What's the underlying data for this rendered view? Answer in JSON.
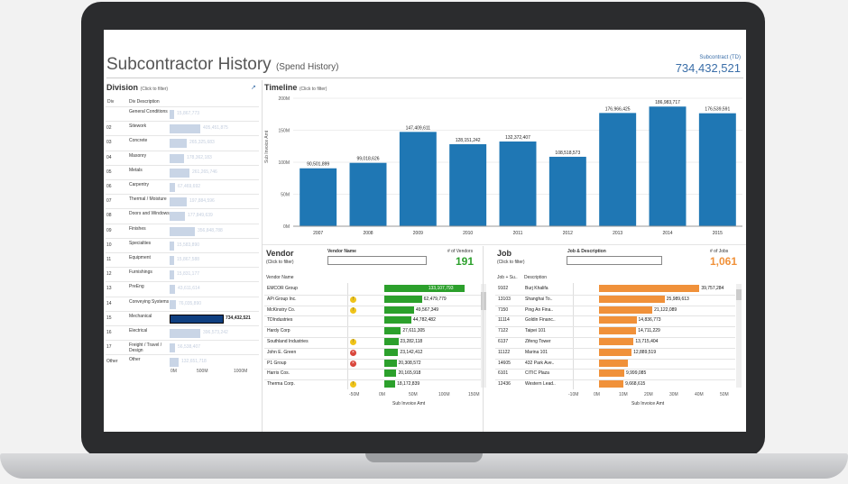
{
  "page": {
    "title": "Subcontractor History",
    "subtitle": "(Spend History)",
    "kpi_label": "Subcontract (TD)",
    "kpi_value": "734,432,521"
  },
  "division": {
    "title": "Division",
    "hint": "(Click to filter)",
    "col_div": "Div",
    "col_desc": "Div Description",
    "rows": [
      {
        "code": "",
        "desc": "General Conditions",
        "val": "15,867,773",
        "frac": 0.05
      },
      {
        "code": "02",
        "desc": "Sitework",
        "val": "405,451,875",
        "frac": 0.34
      },
      {
        "code": "03",
        "desc": "Concrete",
        "val": "265,325,683",
        "frac": 0.19
      },
      {
        "code": "04",
        "desc": "Masonry",
        "val": "178,362,183",
        "frac": 0.16
      },
      {
        "code": "05",
        "desc": "Metals",
        "val": "261,265,746",
        "frac": 0.22
      },
      {
        "code": "06",
        "desc": "Carpentry",
        "val": "67,469,692",
        "frac": 0.06
      },
      {
        "code": "07",
        "desc": "Thermal / Moisture",
        "val": "197,884,596",
        "frac": 0.19
      },
      {
        "code": "08",
        "desc": "Doors and Windows",
        "val": "177,849,639",
        "frac": 0.17
      },
      {
        "code": "09",
        "desc": "Finishes",
        "val": "356,848,788",
        "frac": 0.28
      },
      {
        "code": "10",
        "desc": "Specialties",
        "val": "15,583,890",
        "frac": 0.05
      },
      {
        "code": "11",
        "desc": "Equipment",
        "val": "15,867,588",
        "frac": 0.05
      },
      {
        "code": "12",
        "desc": "Furnishings",
        "val": "15,831,177",
        "frac": 0.05
      },
      {
        "code": "13",
        "desc": "PreEng",
        "val": "43,611,614",
        "frac": 0.06
      },
      {
        "code": "14",
        "desc": "Conveying Systems",
        "val": "76,035,890",
        "frac": 0.07
      },
      {
        "code": "15",
        "desc": "Mechanical",
        "val": "734,432,521",
        "frac": 0.6,
        "selected": true
      },
      {
        "code": "16",
        "desc": "Electrical",
        "val": "396,573,242",
        "frac": 0.34
      },
      {
        "code": "17",
        "desc": "Freight / Travel / Design",
        "val": "56,538,407",
        "frac": 0.06
      },
      {
        "code": "Other",
        "desc": "Other",
        "val": "132,651,718",
        "frac": 0.1
      }
    ],
    "axis": [
      "0M",
      "500M",
      "1000M"
    ]
  },
  "timeline": {
    "title": "Timeline",
    "hint": "(Click to filter)",
    "ylabel": "Sub Invoice Amt",
    "yticks": [
      "200M",
      "150M",
      "100M",
      "50M",
      "0M"
    ]
  },
  "chart_data": [
    {
      "type": "bar",
      "title": "Timeline",
      "ylabel": "Sub Invoice Amt",
      "ylim": [
        0,
        200000000
      ],
      "categories": [
        "2007",
        "2008",
        "2009",
        "2010",
        "2011",
        "2012",
        "2013",
        "2014",
        "2015"
      ],
      "values": [
        90501899,
        99018626,
        147409611,
        128151242,
        132372407,
        108518573,
        176966425,
        186983717,
        176539591
      ],
      "labels": [
        "90,501,899",
        "99,018,626",
        "147,409,611",
        "128,151,242",
        "132,372,407",
        "108,518,573",
        "176,966,425",
        "186,983,717",
        "176,539,591"
      ]
    },
    {
      "type": "bar",
      "title": "Vendor",
      "xlabel": "Sub Invoice Amt",
      "categories": [
        "EMCOR Group",
        "APi Group Inc.",
        "McKinstry Co.",
        "TDIndustries",
        "Hardy Corp",
        "Southland Industries",
        "John E. Green",
        "P1 Group",
        "Harris Cos.",
        "Therma Corp."
      ],
      "values": [
        133107793,
        62479779,
        49567349,
        44782482,
        27611305,
        23282118,
        23142412,
        20308572,
        20165918,
        18172839
      ],
      "labels": [
        "133,107,793",
        "62,479,779",
        "49,567,349",
        "44,782,482",
        "27,611,305",
        "23,282,118",
        "23,142,412",
        "20,308,572",
        "20,165,918",
        "18,172,839"
      ],
      "xticks": [
        "-50M",
        "0M",
        "50M",
        "100M",
        "150M"
      ]
    },
    {
      "type": "bar",
      "title": "Job",
      "xlabel": "Sub Invoice Amt",
      "categories": [
        "Burj Khalifa",
        "Shanghai To..",
        "Ping An Fina..",
        "Goldin Financ..",
        "Taipei 101",
        "Zifeng Tower",
        "Marina 101",
        "432 Park Ave..",
        "CITIC Plaza",
        "Western Lead.."
      ],
      "values": [
        39757284,
        25989613,
        21122089,
        14836773,
        14711229,
        13715404,
        12889519,
        11283858,
        9999085,
        9668615
      ],
      "labels": [
        "39,757,284",
        "25,989,613",
        "21,122,089",
        "14,836,773",
        "14,711,229",
        "13,715,404",
        "12,889,519",
        "",
        "9,999,085",
        "9,668,615"
      ],
      "xticks": [
        "-10M",
        "0M",
        "10M",
        "20M",
        "30M",
        "40M",
        "50M"
      ]
    }
  ],
  "vendor": {
    "title": "Vendor",
    "hint": "(Click to filter)",
    "filter_label": "Vendor Name",
    "count_label": "# of Vendors",
    "count": "191",
    "col_name": "Vendor Name",
    "status": [
      "",
      "warn",
      "warn",
      "",
      "",
      "warn",
      "err",
      "err",
      "",
      "warn"
    ],
    "xlabel": "Sub Invoice Amt"
  },
  "job": {
    "title": "Job",
    "hint": "(Click to filter)",
    "filter_label": "Job & Description",
    "count_label": "# of Jobs",
    "count": "1,061",
    "col_job": "Job + Su..",
    "col_desc": "Description",
    "codes": [
      "9102",
      "13103",
      "7150",
      "11114",
      "7122",
      "6137",
      "11122",
      "14605",
      "6101",
      "12436"
    ],
    "xlabel": "Sub Invoice Amt"
  },
  "colors": {
    "timeline": "#1f77b4",
    "vendor": "#2ca02c",
    "job": "#f0913a",
    "kpi": "#3a6ea8"
  }
}
